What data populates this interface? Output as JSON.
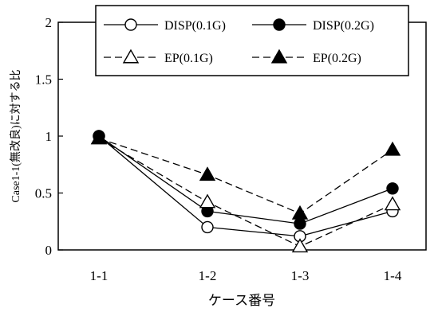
{
  "chart_data": {
    "type": "line",
    "title": "",
    "xlabel": "ケース番号",
    "ylabel": "Case1-1(無改良)に対する比",
    "categories": [
      "1-1",
      "1-2",
      "1-3",
      "1-4"
    ],
    "ylim": [
      0,
      2
    ],
    "yticks": [
      "0",
      "0.5",
      "1",
      "1.5",
      "2"
    ],
    "grid": false,
    "legend_position": "top",
    "series": [
      {
        "name": "DISP(0.1G)",
        "values": [
          1.0,
          0.2,
          0.12,
          0.34
        ],
        "marker": "circle-open",
        "line": "solid"
      },
      {
        "name": "DISP(0.2G)",
        "values": [
          1.0,
          0.34,
          0.23,
          0.54
        ],
        "marker": "circle-filled",
        "line": "solid"
      },
      {
        "name": "EP(0.1G)",
        "values": [
          0.98,
          0.42,
          0.03,
          0.4
        ],
        "marker": "triangle-open",
        "line": "dashed"
      },
      {
        "name": "EP(0.2G)",
        "values": [
          0.98,
          0.66,
          0.32,
          0.88
        ],
        "marker": "triangle-filled",
        "line": "dashed"
      }
    ]
  }
}
